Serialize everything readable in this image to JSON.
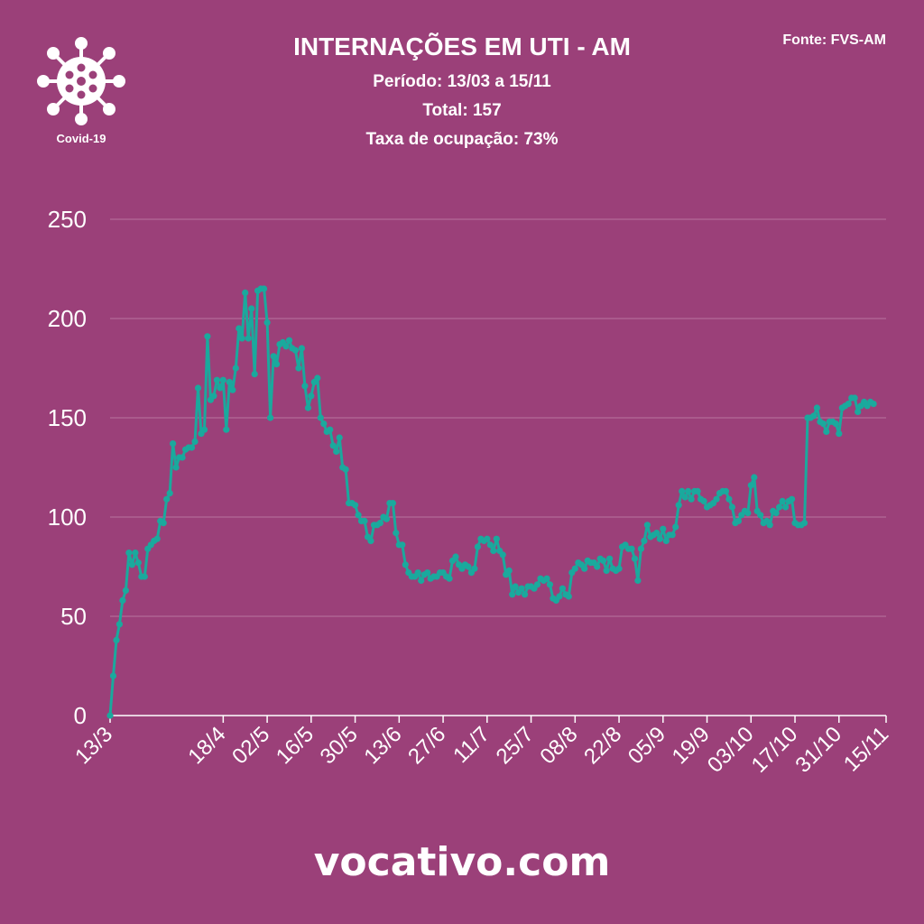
{
  "header": {
    "title": "INTERNAÇÕES EM UTI - AM",
    "period": "Período: 13/03 a 15/11",
    "total": "Total: 157",
    "occupancy": "Taxa de ocupação: 73%",
    "source": "Fonte: FVS-AM"
  },
  "logo": {
    "label": "Covid-19",
    "icon": "virus-icon"
  },
  "footer": {
    "text": "vocativo.com"
  },
  "colors": {
    "background": "#9b4079",
    "line": "#1aa99d",
    "text": "#ffffff",
    "grid": "#b8739f"
  },
  "chart_data": {
    "type": "line",
    "ylim": [
      0,
      250
    ],
    "yticks": [
      0,
      50,
      100,
      150,
      200,
      250
    ],
    "xlim": [
      0,
      247
    ],
    "xticks": [
      {
        "day": 0,
        "label": "13/3"
      },
      {
        "day": 36,
        "label": "18/4"
      },
      {
        "day": 50,
        "label": "02/5"
      },
      {
        "day": 64,
        "label": "16/5"
      },
      {
        "day": 78,
        "label": "30/5"
      },
      {
        "day": 92,
        "label": "13/6"
      },
      {
        "day": 106,
        "label": "27/6"
      },
      {
        "day": 120,
        "label": "11/7"
      },
      {
        "day": 134,
        "label": "25/7"
      },
      {
        "day": 148,
        "label": "08/8"
      },
      {
        "day": 162,
        "label": "22/8"
      },
      {
        "day": 176,
        "label": "05/9"
      },
      {
        "day": 190,
        "label": "19/9"
      },
      {
        "day": 204,
        "label": "03/10"
      },
      {
        "day": 218,
        "label": "17/10"
      },
      {
        "day": 232,
        "label": "31/10"
      },
      {
        "day": 247,
        "label": "15/11"
      }
    ],
    "grid": true,
    "series": [
      {
        "values": [
          0,
          20,
          38,
          46,
          58,
          63,
          82,
          76,
          82,
          77,
          70,
          70,
          84,
          86,
          88,
          89,
          98,
          97,
          109,
          112,
          137,
          125,
          130,
          130,
          134,
          135,
          135,
          138,
          165,
          142,
          144,
          191,
          159,
          161,
          169,
          165,
          169,
          144,
          168,
          164,
          175,
          195,
          190,
          213,
          190,
          205,
          172,
          214,
          215,
          215,
          198,
          150,
          181,
          177,
          187,
          188,
          186,
          189,
          185,
          184,
          175,
          185,
          166,
          155,
          161,
          168,
          170,
          150,
          147,
          143,
          144,
          136,
          133,
          140,
          125,
          124,
          107,
          107,
          106,
          101,
          98,
          98,
          90,
          88,
          96,
          96,
          97,
          100,
          99,
          107,
          107,
          92,
          86,
          86,
          76,
          72,
          70,
          70,
          72,
          68,
          71,
          72,
          69,
          70,
          70,
          72,
          72,
          70,
          69,
          78,
          80,
          76,
          74,
          76,
          75,
          72,
          74,
          85,
          89,
          88,
          89,
          86,
          83,
          89,
          83,
          81,
          71,
          73,
          61,
          65,
          62,
          64,
          61,
          65,
          65,
          64,
          66,
          69,
          68,
          69,
          66,
          59,
          58,
          60,
          64,
          61,
          60,
          72,
          74,
          77,
          76,
          74,
          78,
          77,
          77,
          75,
          79,
          78,
          73,
          79,
          74,
          73,
          74,
          85,
          86,
          84,
          84,
          79,
          68,
          84,
          88,
          96,
          90,
          91,
          92,
          89,
          94,
          88,
          91,
          91,
          95,
          106,
          113,
          110,
          113,
          109,
          113,
          113,
          109,
          108,
          105,
          106,
          107,
          109,
          112,
          113,
          113,
          109,
          105,
          97,
          98,
          101,
          103,
          102,
          116,
          120,
          103,
          101,
          97,
          98,
          96,
          103,
          102,
          105,
          108,
          105,
          108,
          109,
          97,
          96,
          96,
          97,
          150,
          150,
          151,
          155,
          148,
          147,
          143,
          148,
          148,
          147,
          142,
          155,
          156,
          157,
          160,
          160,
          153,
          156,
          158,
          156,
          158,
          157
        ]
      }
    ]
  }
}
